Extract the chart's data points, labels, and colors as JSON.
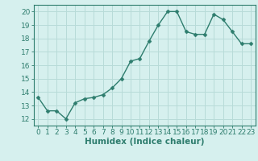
{
  "x": [
    0,
    1,
    2,
    3,
    4,
    5,
    6,
    7,
    8,
    9,
    10,
    11,
    12,
    13,
    14,
    15,
    16,
    17,
    18,
    19,
    20,
    21,
    22,
    23
  ],
  "y": [
    13.6,
    12.6,
    12.6,
    12.0,
    13.2,
    13.5,
    13.6,
    13.8,
    14.3,
    15.0,
    16.3,
    16.5,
    17.8,
    19.0,
    20.0,
    20.0,
    18.5,
    18.3,
    18.3,
    19.8,
    19.4,
    18.5,
    17.6,
    17.6
  ],
  "line_color": "#2e7d6e",
  "marker_color": "#2e7d6e",
  "bg_color": "#d6f0ee",
  "grid_color": "#b8dbd8",
  "xlabel": "Humidex (Indice chaleur)",
  "xlim": [
    -0.5,
    23.5
  ],
  "ylim": [
    11.5,
    20.5
  ],
  "yticks": [
    12,
    13,
    14,
    15,
    16,
    17,
    18,
    19,
    20
  ],
  "xticks": [
    0,
    1,
    2,
    3,
    4,
    5,
    6,
    7,
    8,
    9,
    10,
    11,
    12,
    13,
    14,
    15,
    16,
    17,
    18,
    19,
    20,
    21,
    22,
    23
  ],
  "tick_label_fontsize": 6.5,
  "xlabel_fontsize": 7.5,
  "line_width": 1.0,
  "marker_size": 2.5
}
